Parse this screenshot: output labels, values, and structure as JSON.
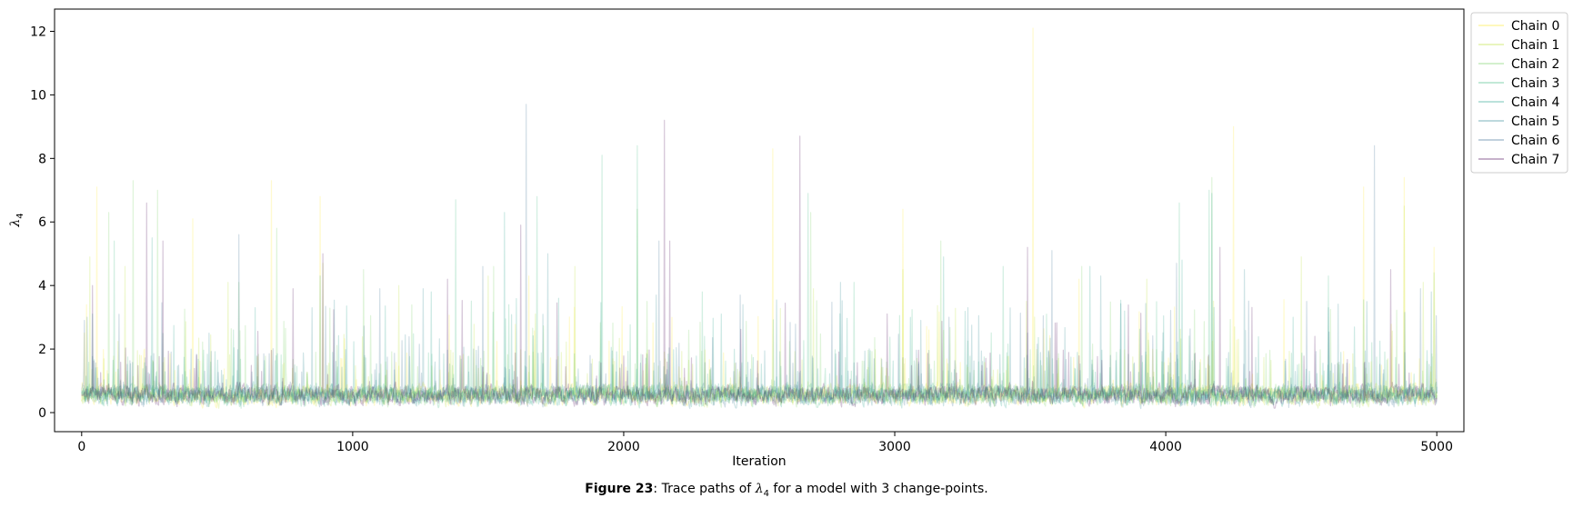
{
  "caption": {
    "figure_label": "Figure 23",
    "text_before": ": Trace paths of ",
    "symbol": "λ",
    "subscript": "4",
    "text_after": " for a model with 3 change-points."
  },
  "chart_data": {
    "type": "line",
    "xlabel": "Iteration",
    "ylabel": "λ",
    "ylabel_subscript": "4",
    "xlim": [
      -100,
      5100
    ],
    "ylim": [
      -0.6,
      12.7
    ],
    "xticks": [
      0,
      1000,
      2000,
      3000,
      4000,
      5000
    ],
    "yticks": [
      0,
      2,
      4,
      6,
      8,
      10,
      12
    ],
    "grid": false,
    "legend_position": "outside-top-right",
    "n_iterations": 5000,
    "baseline_level": 0.55,
    "series": [
      {
        "name": "Chain 0",
        "color": "#fde725",
        "spikes": [
          [
            55,
            7.1
          ],
          [
            410,
            6.1
          ],
          [
            700,
            7.3
          ],
          [
            880,
            6.8
          ],
          [
            1650,
            4.3
          ],
          [
            2550,
            8.3
          ],
          [
            3030,
            6.4
          ],
          [
            3510,
            12.1
          ],
          [
            3680,
            4.2
          ],
          [
            4250,
            9.0
          ],
          [
            4730,
            7.1
          ],
          [
            4880,
            7.4
          ],
          [
            4990,
            5.2
          ]
        ]
      },
      {
        "name": "Chain 1",
        "color": "#b5de2b",
        "spikes": [
          [
            30,
            4.9
          ],
          [
            160,
            4.6
          ],
          [
            540,
            4.1
          ],
          [
            890,
            4.7
          ],
          [
            1170,
            4.0
          ],
          [
            1500,
            4.3
          ],
          [
            1820,
            4.6
          ],
          [
            2700,
            3.9
          ],
          [
            3030,
            4.5
          ],
          [
            3930,
            4.2
          ],
          [
            4500,
            4.9
          ],
          [
            4880,
            6.5
          ],
          [
            4950,
            4.1
          ]
        ]
      },
      {
        "name": "Chain 2",
        "color": "#6ece58",
        "spikes": [
          [
            100,
            6.3
          ],
          [
            190,
            7.3
          ],
          [
            280,
            7.0
          ],
          [
            580,
            4.1
          ],
          [
            720,
            5.8
          ],
          [
            1040,
            4.5
          ],
          [
            1520,
            4.6
          ],
          [
            2050,
            6.4
          ],
          [
            2690,
            6.3
          ],
          [
            3170,
            5.4
          ],
          [
            3690,
            4.6
          ],
          [
            4170,
            7.4
          ],
          [
            4990,
            4.4
          ]
        ]
      },
      {
        "name": "Chain 3",
        "color": "#35b779",
        "spikes": [
          [
            120,
            5.4
          ],
          [
            560,
            2.6
          ],
          [
            1380,
            6.7
          ],
          [
            1680,
            6.8
          ],
          [
            1920,
            8.1
          ],
          [
            2050,
            8.4
          ],
          [
            2290,
            3.8
          ],
          [
            2680,
            6.9
          ],
          [
            2850,
            4.1
          ],
          [
            3400,
            4.6
          ],
          [
            4050,
            6.6
          ],
          [
            4160,
            7.0
          ],
          [
            4600,
            4.3
          ]
        ]
      },
      {
        "name": "Chain 4",
        "color": "#1f9e89",
        "spikes": [
          [
            40,
            3.1
          ],
          [
            260,
            5.5
          ],
          [
            640,
            3.3
          ],
          [
            880,
            4.3
          ],
          [
            1290,
            3.8
          ],
          [
            1560,
            6.3
          ],
          [
            1760,
            3.6
          ],
          [
            2360,
            3.1
          ],
          [
            3180,
            4.9
          ],
          [
            3720,
            4.6
          ],
          [
            4060,
            4.8
          ],
          [
            4170,
            6.9
          ],
          [
            4470,
            3.0
          ]
        ]
      },
      {
        "name": "Chain 5",
        "color": "#26828e",
        "spikes": [
          [
            20,
            3.0
          ],
          [
            470,
            2.5
          ],
          [
            850,
            3.3
          ],
          [
            1260,
            3.9
          ],
          [
            1720,
            5.0
          ],
          [
            2120,
            3.7
          ],
          [
            2440,
            3.4
          ],
          [
            2800,
            4.1
          ],
          [
            3270,
            3.3
          ],
          [
            3760,
            4.3
          ],
          [
            4290,
            4.5
          ],
          [
            4600,
            3.3
          ],
          [
            4980,
            3.8
          ]
        ]
      },
      {
        "name": "Chain 6",
        "color": "#31688e",
        "spikes": [
          [
            10,
            2.9
          ],
          [
            580,
            5.6
          ],
          [
            1100,
            3.9
          ],
          [
            1480,
            4.6
          ],
          [
            1640,
            9.7
          ],
          [
            2130,
            5.4
          ],
          [
            2430,
            3.7
          ],
          [
            3200,
            3.0
          ],
          [
            3580,
            5.1
          ],
          [
            4040,
            4.7
          ],
          [
            4520,
            3.5
          ],
          [
            4770,
            8.4
          ],
          [
            4940,
            3.9
          ]
        ]
      },
      {
        "name": "Chain 7",
        "color": "#440154",
        "spikes": [
          [
            40,
            4.0
          ],
          [
            240,
            6.6
          ],
          [
            300,
            5.4
          ],
          [
            780,
            3.9
          ],
          [
            890,
            5.0
          ],
          [
            1350,
            4.2
          ],
          [
            1620,
            5.9
          ],
          [
            2150,
            9.2
          ],
          [
            2170,
            5.4
          ],
          [
            2650,
            8.7
          ],
          [
            3490,
            5.2
          ],
          [
            4200,
            5.2
          ],
          [
            4830,
            4.5
          ]
        ]
      }
    ]
  }
}
